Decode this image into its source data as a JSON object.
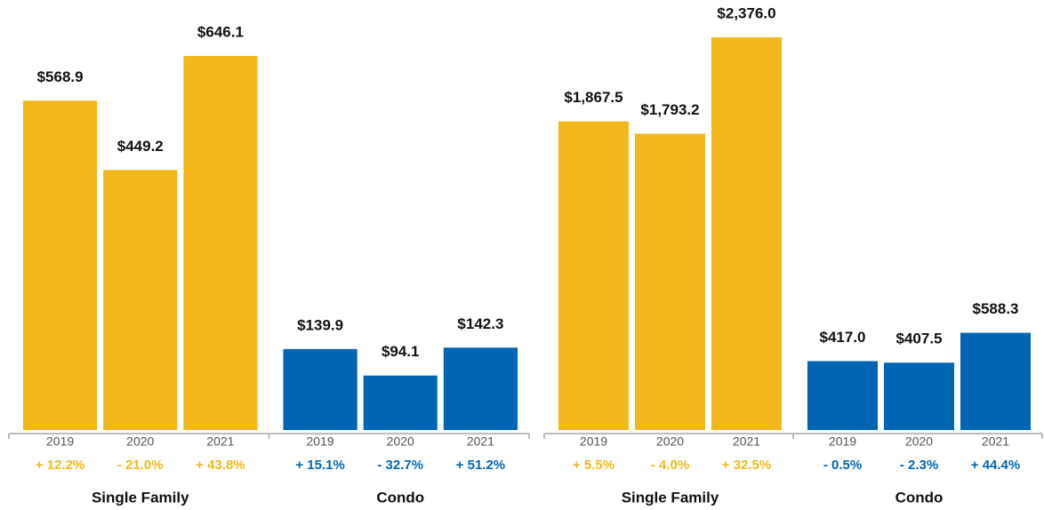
{
  "chart_data": [
    {
      "type": "bar",
      "categories": [
        "2019",
        "2020",
        "2021"
      ],
      "series": [
        {
          "name": "Single Family",
          "color": "#f2b81c",
          "values": [
            568.9,
            449.2,
            646.1
          ],
          "value_labels": [
            "$568.9",
            "$449.2",
            "$646.1"
          ],
          "changes": [
            "+ 12.2%",
            "- 21.0%",
            "+ 43.8%"
          ]
        },
        {
          "name": "Condo",
          "color": "#0066b3",
          "values": [
            139.9,
            94.1,
            142.3
          ],
          "value_labels": [
            "$139.9",
            "$94.1",
            "$142.3"
          ],
          "changes": [
            "+ 15.1%",
            "- 32.7%",
            "+ 51.2%"
          ]
        }
      ]
    },
    {
      "type": "bar",
      "categories": [
        "2019",
        "2020",
        "2021"
      ],
      "series": [
        {
          "name": "Single Family",
          "color": "#f2b81c",
          "values": [
            1867.5,
            1793.2,
            2376.0
          ],
          "value_labels": [
            "$1,867.5",
            "$1,793.2",
            "$2,376.0"
          ],
          "changes": [
            "+ 5.5%",
            "- 4.0%",
            "+ 32.5%"
          ]
        },
        {
          "name": "Condo",
          "color": "#0066b3",
          "values": [
            417.0,
            407.5,
            588.3
          ],
          "value_labels": [
            "$417.0",
            "$407.5",
            "$588.3"
          ],
          "changes": [
            "- 0.5%",
            "- 2.3%",
            "+ 44.4%"
          ]
        }
      ]
    }
  ]
}
